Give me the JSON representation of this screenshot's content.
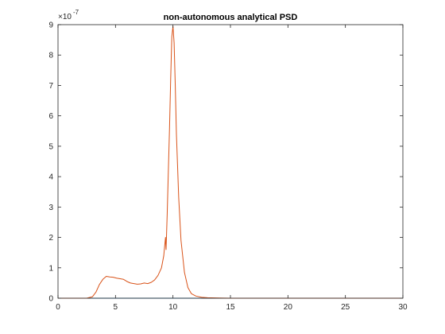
{
  "chart_data": {
    "type": "line",
    "title": "non-autonomous analytical PSD",
    "xlabel": "",
    "ylabel": "",
    "xlim": [
      0,
      30
    ],
    "ylim": [
      0,
      9
    ],
    "y_scale_prefix": "×10",
    "y_scale_exponent": "-7",
    "x_ticks": [
      0,
      5,
      10,
      15,
      20,
      25,
      30
    ],
    "x_tick_labels": [
      "0",
      "5",
      "10",
      "15",
      "20",
      "25",
      "30"
    ],
    "y_ticks": [
      0,
      1,
      2,
      3,
      4,
      5,
      6,
      7,
      8,
      9
    ],
    "y_tick_labels": [
      "0",
      "1",
      "2",
      "3",
      "4",
      "5",
      "6",
      "7",
      "8",
      "9"
    ],
    "grid": false,
    "series": [
      {
        "color": "#0072bd",
        "x": [
          0,
          30
        ],
        "y": [
          0,
          0
        ]
      },
      {
        "color": "#d95319",
        "x": [
          0,
          2.5,
          3.0,
          3.3,
          3.6,
          3.9,
          4.2,
          4.5,
          4.8,
          5.1,
          5.4,
          5.7,
          6.0,
          6.3,
          6.6,
          6.9,
          7.2,
          7.5,
          7.8,
          8.1,
          8.4,
          8.7,
          9.0,
          9.2,
          9.35,
          9.4,
          9.5,
          9.6,
          9.7,
          9.8,
          9.9,
          10.0,
          10.1,
          10.2,
          10.3,
          10.5,
          10.7,
          11.0,
          11.3,
          11.6,
          12.0,
          12.5,
          13.0,
          14.0,
          15.0,
          17.0,
          30
        ],
        "y": [
          0,
          0,
          0.05,
          0.2,
          0.45,
          0.62,
          0.72,
          0.7,
          0.69,
          0.66,
          0.64,
          0.62,
          0.55,
          0.5,
          0.48,
          0.46,
          0.47,
          0.5,
          0.48,
          0.52,
          0.6,
          0.75,
          1.0,
          1.4,
          2.0,
          1.6,
          2.8,
          4.2,
          5.6,
          7.2,
          8.6,
          8.95,
          8.4,
          7.0,
          5.4,
          3.3,
          1.9,
          0.85,
          0.35,
          0.15,
          0.07,
          0.03,
          0.015,
          0.005,
          0.0,
          0.0,
          0.0
        ]
      }
    ]
  }
}
